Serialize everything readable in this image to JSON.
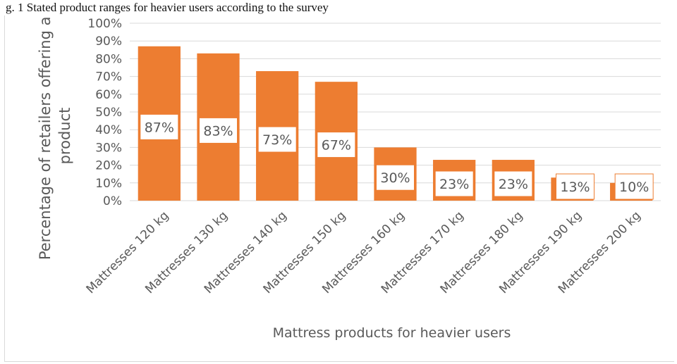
{
  "caption": "g. 1 Stated product ranges for heavier users according to the survey",
  "chart_data": {
    "type": "bar",
    "categories": [
      "Mattresses 120 kg",
      "Mattresses 130 kg",
      "Mattresses 140 kg",
      "Mattresses 150 kg",
      "Mattresses 160 kg",
      "Mattresses 170 kg",
      "Mattresses 180 kg",
      "Mattresses 190 kg",
      "Mattresses 200 kg"
    ],
    "values": [
      87,
      83,
      73,
      67,
      30,
      23,
      23,
      13,
      10
    ],
    "data_labels": [
      "87%",
      "83%",
      "73%",
      "67%",
      "30%",
      "23%",
      "23%",
      "13%",
      "10%"
    ],
    "yticks": [
      "0%",
      "10%",
      "20%",
      "30%",
      "40%",
      "50%",
      "60%",
      "70%",
      "80%",
      "90%",
      "100%"
    ],
    "ylim": [
      0,
      100
    ],
    "xlabel": "Mattress products for heavier users",
    "ylabel": [
      "Percentage of retailers offering a",
      "product"
    ],
    "grid": true,
    "legend": "none",
    "bar_color": "#ed7d31",
    "grid_color": "#d9d9d9",
    "text_color": "#595959"
  }
}
